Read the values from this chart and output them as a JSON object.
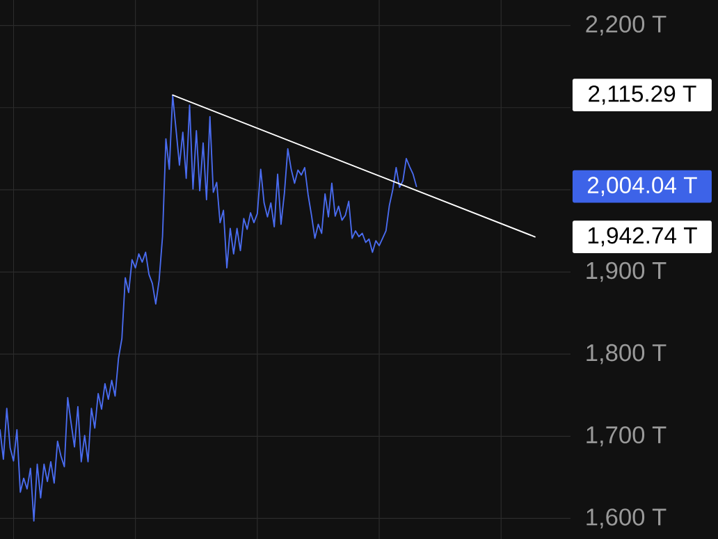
{
  "chart_data": {
    "type": "line",
    "categories": [
      null,
      null,
      null,
      null,
      null,
      null,
      null,
      null,
      null,
      null,
      null,
      null,
      null,
      null,
      null,
      null,
      null,
      null,
      null,
      null,
      null,
      null,
      null,
      null,
      null,
      null,
      null,
      null,
      null,
      null,
      null,
      null,
      null,
      null,
      null,
      null,
      null,
      null,
      null,
      null,
      null,
      null,
      null,
      null,
      null,
      null,
      null,
      null,
      null,
      null,
      null,
      null,
      null,
      null,
      null,
      null,
      null,
      null,
      null,
      null,
      null,
      null,
      null,
      null,
      null,
      null,
      null,
      null,
      null,
      null,
      null,
      null,
      null,
      null,
      null,
      null,
      null,
      null,
      null,
      null,
      null,
      null,
      null,
      null,
      null,
      null,
      null,
      null,
      null,
      null,
      null,
      null,
      null,
      null,
      null,
      null,
      null,
      null,
      null,
      null,
      null,
      null,
      null,
      null,
      null,
      null,
      null,
      null,
      null,
      null,
      null,
      null,
      null,
      null,
      null,
      null,
      null,
      null,
      null,
      null,
      null,
      null,
      null,
      null,
      null,
      null,
      null,
      null,
      null,
      null,
      null,
      null,
      null,
      null,
      null,
      null,
      null,
      null,
      null,
      null,
      null,
      null,
      null,
      null,
      null,
      null,
      null,
      null,
      null,
      null,
      null,
      null,
      null,
      null,
      null,
      null,
      null,
      null,
      null
    ],
    "series": [
      {
        "color": "#4a6cf0",
        "values": [
          1708,
          1672,
          1734,
          1686,
          1670,
          1708,
          1632,
          1649,
          1636,
          1661,
          1597,
          1666,
          1625,
          1666,
          1645,
          1669,
          1643,
          1694,
          1676,
          1663,
          1747,
          1716,
          1687,
          1736,
          1669,
          1701,
          1669,
          1734,
          1710,
          1752,
          1733,
          1764,
          1745,
          1768,
          1749,
          1795,
          1819,
          1893,
          1875,
          1915,
          1905,
          1922,
          1912,
          1924,
          1897,
          1886,
          1861,
          1890,
          1943,
          2062,
          2025,
          2115,
          2073,
          2030,
          2070,
          2014,
          2103,
          2001,
          2072,
          1999,
          2057,
          1988,
          2089,
          1997,
          2009,
          1960,
          1975,
          1905,
          1953,
          1922,
          1953,
          1926,
          1965,
          1952,
          1972,
          1960,
          1971,
          2025,
          1984,
          1967,
          1984,
          1955,
          2019,
          1958,
          1996,
          2050,
          2025,
          2008,
          2024,
          2018,
          2027,
          1994,
          1969,
          1941,
          1958,
          1947,
          1995,
          1967,
          2008,
          1968,
          1980,
          1963,
          1969,
          1986,
          1941,
          1950,
          1943,
          1947,
          1936,
          1940,
          1924,
          1938,
          1932,
          1941,
          1950,
          1981,
          2000,
          2027,
          2003,
          2011,
          2038,
          2028,
          2019,
          2004.04,
          null,
          null,
          null,
          null,
          null,
          null,
          null,
          null,
          null,
          null,
          null,
          null,
          null,
          null,
          null,
          null,
          null,
          null,
          null,
          null,
          null,
          null,
          null,
          null,
          null,
          null,
          null,
          null,
          null,
          null,
          null,
          null,
          null,
          null,
          null
        ]
      },
      {
        "type": "line",
        "color": "#ffffff",
        "values": [
          null,
          null,
          null,
          null,
          null,
          null,
          null,
          null,
          null,
          null,
          null,
          null,
          null,
          null,
          null,
          null,
          null,
          null,
          null,
          null,
          null,
          null,
          null,
          null,
          null,
          null,
          null,
          null,
          null,
          null,
          null,
          null,
          null,
          null,
          null,
          null,
          null,
          null,
          null,
          null,
          null,
          null,
          null,
          null,
          null,
          null,
          null,
          null,
          null,
          null,
          null,
          2115.29,
          null,
          null,
          null,
          null,
          null,
          null,
          null,
          null,
          null,
          null,
          null,
          null,
          null,
          null,
          null,
          null,
          null,
          null,
          null,
          null,
          null,
          null,
          null,
          null,
          null,
          null,
          null,
          null,
          null,
          null,
          null,
          null,
          null,
          null,
          null,
          null,
          null,
          null,
          null,
          null,
          null,
          null,
          null,
          null,
          null,
          null,
          null,
          null,
          null,
          null,
          null,
          null,
          null,
          null,
          null,
          null,
          null,
          null,
          null,
          null,
          null,
          null,
          null,
          null,
          null,
          null,
          null,
          null,
          null,
          null,
          null,
          null,
          null,
          null,
          null,
          null,
          null,
          null,
          null,
          null,
          null,
          null,
          null,
          null,
          null,
          null,
          null,
          null,
          null,
          null,
          null,
          null,
          null,
          null,
          null,
          null,
          null,
          null,
          null,
          null,
          null,
          null,
          null,
          null,
          null,
          null,
          1942.74
        ]
      }
    ],
    "ylim": [
      1575,
      2231
    ],
    "yticks": [
      {
        "value": 1600,
        "label": "1,600 T"
      },
      {
        "value": 1700,
        "label": "1,700 T"
      },
      {
        "value": 1800,
        "label": "1,800 T"
      },
      {
        "value": 1900,
        "label": "1,900 T"
      },
      {
        "value": 2000,
        "label": null
      },
      {
        "value": 2100,
        "label": null
      },
      {
        "value": 2200,
        "label": "2,200 T"
      }
    ],
    "tick_labels": "y",
    "grid": true,
    "annotations": [
      "2,115.29 T",
      "2,004.04 T",
      "1,942.74 T"
    ]
  }
}
